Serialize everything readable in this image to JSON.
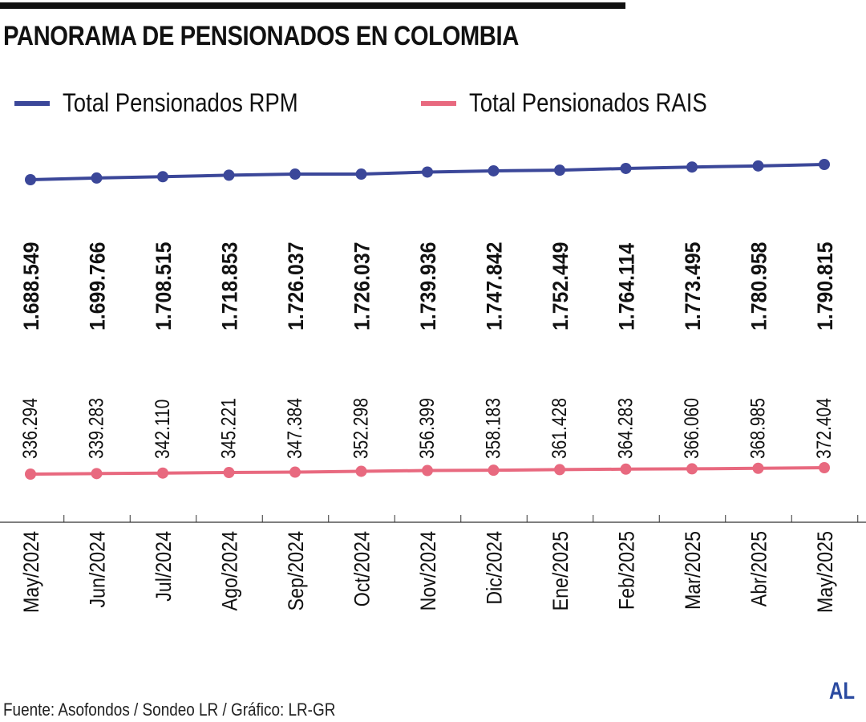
{
  "header": {
    "title": "PANORAMA DE PENSIONADOS EN COLOMBIA"
  },
  "legend": [
    {
      "label": "Total Pensionados RPM",
      "color": "#3b4799"
    },
    {
      "label": "Total Pensionados RAIS",
      "color": "#e8697f"
    }
  ],
  "footer": {
    "source": "Fuente: Asofondos / Sondeo LR / Gráfico: LR-GR",
    "logo": "AL"
  },
  "chart_data": {
    "type": "line",
    "title": "PANORAMA DE PENSIONADOS EN COLOMBIA",
    "xlabel": "",
    "ylabel": "",
    "grid": false,
    "legend_position": "top",
    "categories": [
      "May/2024",
      "Jun/2024",
      "Jul/2024",
      "Ago/2024",
      "Sep/2024",
      "Oct/2024",
      "Nov/2024",
      "Dic/2024",
      "Ene/2025",
      "Feb/2025",
      "Mar/2025",
      "Abr/2025",
      "May/2025"
    ],
    "series": [
      {
        "name": "Total Pensionados RPM",
        "color": "#3b4799",
        "values": [
          1688549,
          1699766,
          1708515,
          1718853,
          1726037,
          1726037,
          1739936,
          1747842,
          1752449,
          1764114,
          1773495,
          1780958,
          1790815
        ],
        "labels": [
          "1.688.549",
          "1.699.766",
          "1.708.515",
          "1.718.853",
          "1.726.037",
          "1.726.037",
          "1.739.936",
          "1.747.842",
          "1.752.449",
          "1.764.114",
          "1.773.495",
          "1.780.958",
          "1.790.815"
        ]
      },
      {
        "name": "Total Pensionados RAIS",
        "color": "#e8697f",
        "values": [
          336294,
          339283,
          342110,
          345221,
          347384,
          352298,
          356399,
          358183,
          361428,
          364283,
          366060,
          368985,
          372404
        ],
        "labels": [
          "336.294",
          "339.283",
          "342.110",
          "345.221",
          "347.384",
          "352.298",
          "356.399",
          "358.183",
          "361.428",
          "364.283",
          "366.060",
          "368.985",
          "372.404"
        ]
      }
    ]
  }
}
